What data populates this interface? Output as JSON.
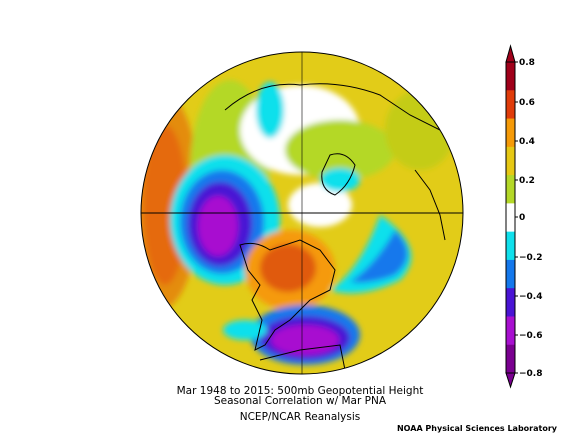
{
  "figure": {
    "caption_line1": "Mar 1948 to 2015: 500mb Geopotential Height",
    "caption_line2": "Seasonal Correlation w/ Mar PNA",
    "caption_line3": "NCEP/NCAR Reanalysis",
    "credit": "NOAA Physical Sciences Laboratory"
  },
  "colorbar": {
    "tick_labels": [
      "0.8",
      "0.6",
      "0.4",
      "0.2",
      "0",
      "−0.2",
      "−0.4",
      "−0.6",
      "−0.8"
    ],
    "colors": [
      "#a0001a",
      "#e03c0a",
      "#f59a08",
      "#e6c814",
      "#b4d828",
      "#ffffff",
      "#10e0ec",
      "#1478ec",
      "#4a14d4",
      "#a810d0",
      "#7a0090"
    ]
  },
  "map": {
    "projection": "polar-stereographic",
    "center": "north-pole",
    "field": "correlation",
    "features": [
      {
        "name": "north-pacific-low-center",
        "sign": "negative",
        "value": -0.8
      },
      {
        "name": "western-canada-ridge-center",
        "sign": "positive",
        "value": 0.6
      },
      {
        "name": "southeast-us-low-center",
        "sign": "negative",
        "value": -0.8
      },
      {
        "name": "subtropical-pacific-high",
        "sign": "positive",
        "value": 0.6
      }
    ]
  }
}
